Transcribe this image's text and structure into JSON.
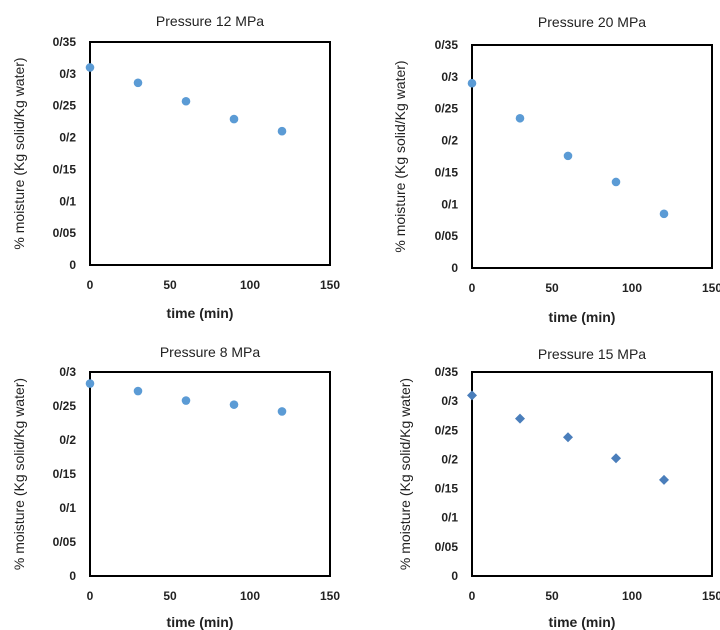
{
  "chart_data": [
    {
      "type": "scatter",
      "title": "Pressure 12 MPa",
      "xlabel": "time (min)",
      "ylabel": "% moisture (Kg solid/Kg water)",
      "xlim": [
        0,
        150
      ],
      "ylim": [
        0,
        0.35
      ],
      "xticks": [
        0,
        50,
        100,
        150
      ],
      "xtick_labels": [
        "0",
        "50",
        "100",
        "150"
      ],
      "yticks": [
        0,
        0.05,
        0.1,
        0.15,
        0.2,
        0.25,
        0.3,
        0.35
      ],
      "ytick_labels": [
        "0",
        "0/05",
        "0/1",
        "0/15",
        "0/2",
        "0/25",
        "0/3",
        "0/35"
      ],
      "marker": "circle",
      "color": "#5b9bd5",
      "grid": false,
      "legend": "none",
      "series": [
        {
          "x": [
            0,
            30,
            60,
            90,
            120
          ],
          "y": [
            0.31,
            0.286,
            0.257,
            0.229,
            0.21
          ]
        }
      ]
    },
    {
      "type": "scatter",
      "title": "Pressure 20 MPa",
      "xlabel": "time (min)",
      "ylabel": "% moisture (Kg solid/Kg water)",
      "xlim": [
        0,
        150
      ],
      "ylim": [
        0,
        0.35
      ],
      "xticks": [
        0,
        50,
        100,
        150
      ],
      "xtick_labels": [
        "0",
        "50",
        "100",
        "150"
      ],
      "yticks": [
        0,
        0.05,
        0.1,
        0.15,
        0.2,
        0.25,
        0.3,
        0.35
      ],
      "ytick_labels": [
        "0",
        "0/05",
        "0/1",
        "0/15",
        "0/2",
        "0/25",
        "0/3",
        "0/35"
      ],
      "marker": "circle",
      "color": "#5b9bd5",
      "grid": false,
      "legend": "none",
      "series": [
        {
          "x": [
            0,
            30,
            60,
            90,
            120
          ],
          "y": [
            0.29,
            0.235,
            0.176,
            0.135,
            0.085
          ]
        }
      ]
    },
    {
      "type": "scatter",
      "title": "Pressure 8 MPa",
      "xlabel": "time (min)",
      "ylabel": "% moisture (Kg solid/Kg water)",
      "xlim": [
        0,
        150
      ],
      "ylim": [
        0,
        0.3
      ],
      "xticks": [
        0,
        50,
        100,
        150
      ],
      "xtick_labels": [
        "0",
        "50",
        "100",
        "150"
      ],
      "yticks": [
        0,
        0.05,
        0.1,
        0.15,
        0.2,
        0.25,
        0.3
      ],
      "ytick_labels": [
        "0",
        "0/05",
        "0/1",
        "0/15",
        "0/2",
        "0/25",
        "0/3"
      ],
      "marker": "circle",
      "color": "#5b9bd5",
      "grid": false,
      "legend": "none",
      "series": [
        {
          "x": [
            0,
            30,
            60,
            90,
            120
          ],
          "y": [
            0.283,
            0.272,
            0.258,
            0.252,
            0.242
          ]
        }
      ]
    },
    {
      "type": "scatter",
      "title": "Pressure 15 MPa",
      "xlabel": "time (min)",
      "ylabel": "% moisture (Kg solid/Kg water)",
      "xlim": [
        0,
        150
      ],
      "ylim": [
        0,
        0.35
      ],
      "xticks": [
        0,
        50,
        100,
        150
      ],
      "xtick_labels": [
        "0",
        "50",
        "100",
        "150"
      ],
      "yticks": [
        0,
        0.05,
        0.1,
        0.15,
        0.2,
        0.25,
        0.3,
        0.35
      ],
      "ytick_labels": [
        "0",
        "0/05",
        "0/1",
        "0/15",
        "0/2",
        "0/25",
        "0/3",
        "0/35"
      ],
      "marker": "diamond",
      "color": "#4a7ebb",
      "grid": false,
      "legend": "none",
      "series": [
        {
          "x": [
            0,
            30,
            60,
            90,
            120
          ],
          "y": [
            0.31,
            0.27,
            0.238,
            0.202,
            0.165
          ]
        }
      ]
    }
  ]
}
